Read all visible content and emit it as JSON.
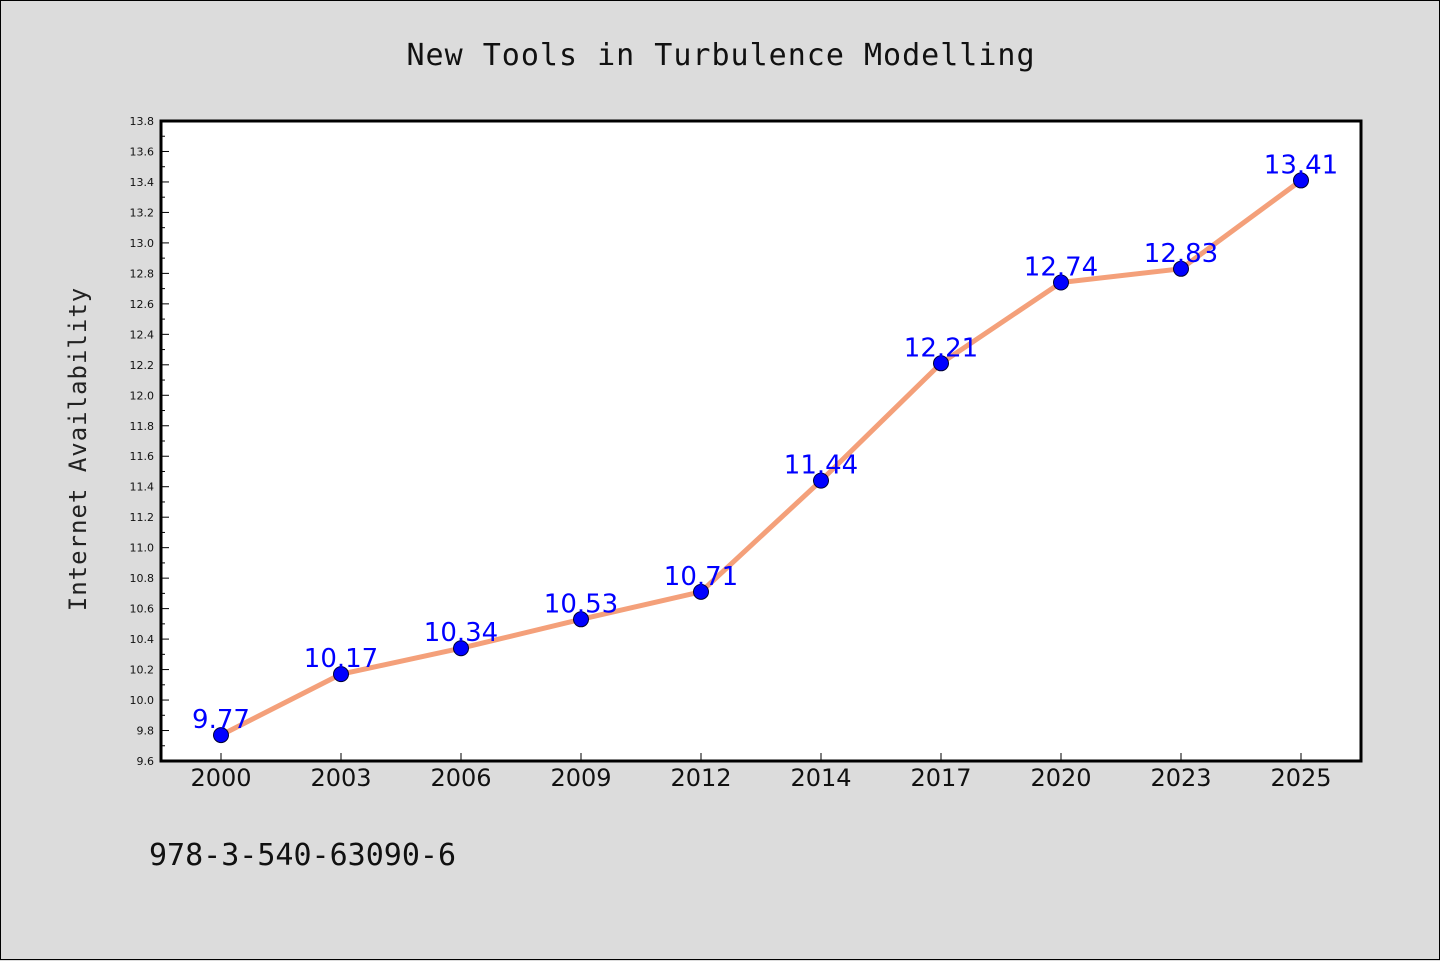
{
  "chart_data": {
    "type": "line",
    "title": "New Tools in Turbulence Modelling",
    "xlabel": "",
    "ylabel": "Internet Availability",
    "categories": [
      "2000",
      "2003",
      "2006",
      "2009",
      "2012",
      "2014",
      "2017",
      "2020",
      "2023",
      "2025"
    ],
    "series": [
      {
        "values": [
          9.77,
          10.17,
          10.34,
          10.53,
          10.71,
          11.44,
          12.21,
          12.74,
          12.83,
          13.41
        ],
        "data_labels": [
          "9.77",
          "10.17",
          "10.34",
          "10.53",
          "10.71",
          "11.44",
          "12.21",
          "12.74",
          "12.83",
          "13.41"
        ]
      }
    ],
    "ylim": [
      9.6,
      13.8
    ],
    "yticks": [
      "9.6",
      "9.8",
      "10.0",
      "10.2",
      "10.4",
      "10.6",
      "10.8",
      "11.0",
      "11.2",
      "11.4",
      "11.6",
      "11.8",
      "12.0",
      "12.2",
      "12.4",
      "12.6",
      "12.8",
      "13.0",
      "13.2",
      "13.4",
      "13.6",
      "13.8"
    ],
    "grid": false,
    "colors": {
      "line": "#f4a07a",
      "marker": "#0000ff",
      "label": "#0000ff",
      "plot_bg": "#ffffff",
      "page_bg": "#dcdcdc"
    }
  },
  "footer": {
    "isbn": "978-3-540-63090-6"
  }
}
